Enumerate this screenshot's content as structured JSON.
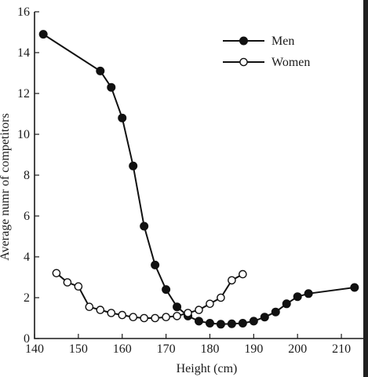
{
  "chart_data": {
    "type": "line",
    "title": "",
    "xlabel": "Height (cm)",
    "ylabel": "Average num⹞r of competitors",
    "xlim": [
      140,
      215
    ],
    "ylim": [
      0,
      16
    ],
    "xticks": [
      140,
      150,
      160,
      170,
      180,
      190,
      200,
      210
    ],
    "yticks": [
      0,
      2,
      4,
      6,
      8,
      10,
      12,
      14,
      16
    ],
    "xtick_labels": [
      "140",
      "150",
      "160",
      "170",
      "180",
      "190",
      "200",
      "210"
    ],
    "ytick_labels": [
      "0",
      "2",
      "4",
      "6",
      "8",
      "10",
      "12",
      "14",
      "16"
    ],
    "grid": false,
    "legend_position": "top-right",
    "series": [
      {
        "name": "Men",
        "marker": "filled-circle",
        "color": "#111111",
        "points": [
          [
            142,
            14.9
          ],
          [
            155,
            13.1
          ],
          [
            157.5,
            12.3
          ],
          [
            160,
            10.8
          ],
          [
            162.5,
            8.45
          ],
          [
            165,
            5.5
          ],
          [
            167.5,
            3.6
          ],
          [
            170,
            2.4
          ],
          [
            172.5,
            1.55
          ],
          [
            175,
            1.1
          ],
          [
            177.5,
            0.85
          ],
          [
            180,
            0.75
          ],
          [
            182.5,
            0.7
          ],
          [
            185,
            0.72
          ],
          [
            187.5,
            0.75
          ],
          [
            190,
            0.85
          ],
          [
            192.5,
            1.05
          ],
          [
            195,
            1.3
          ],
          [
            197.5,
            1.7
          ],
          [
            200,
            2.05
          ],
          [
            202.5,
            2.2
          ],
          [
            213,
            2.5
          ]
        ]
      },
      {
        "name": "Women",
        "marker": "open-circle",
        "color": "#111111",
        "points": [
          [
            145,
            3.2
          ],
          [
            147.5,
            2.75
          ],
          [
            150,
            2.55
          ],
          [
            152.5,
            1.55
          ],
          [
            155,
            1.4
          ],
          [
            157.5,
            1.25
          ],
          [
            160,
            1.15
          ],
          [
            162.5,
            1.05
          ],
          [
            165,
            1.0
          ],
          [
            167.5,
            1.0
          ],
          [
            170,
            1.05
          ],
          [
            172.5,
            1.1
          ],
          [
            175,
            1.25
          ],
          [
            177.5,
            1.4
          ],
          [
            180,
            1.7
          ],
          [
            182.5,
            2.0
          ],
          [
            185,
            2.85
          ],
          [
            187.5,
            3.15
          ]
        ]
      }
    ]
  }
}
